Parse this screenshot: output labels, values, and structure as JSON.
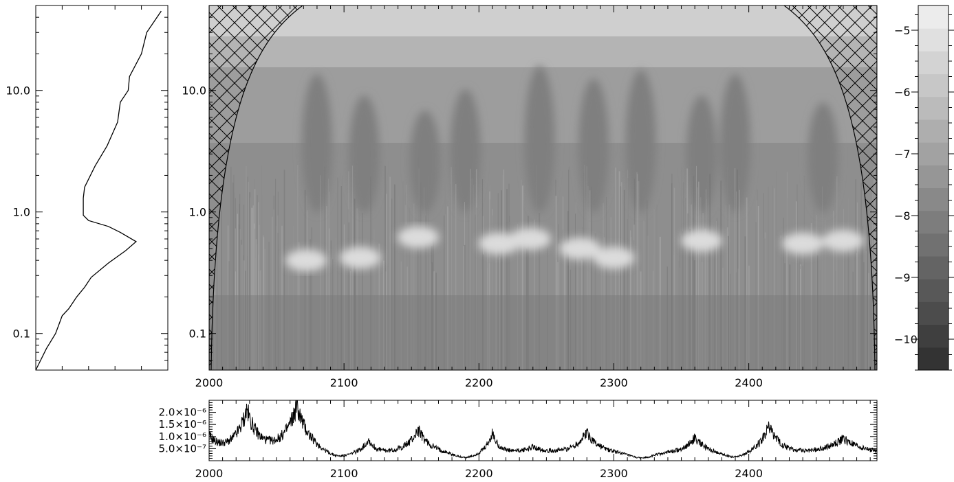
{
  "chart_data": [
    {
      "type": "line",
      "panel": "global-spectrum",
      "yscale": "log",
      "ylim": [
        0.05,
        50
      ],
      "ytick_labels": [
        "10.0",
        "1.0",
        "0.1"
      ],
      "ytick_values": [
        10,
        1,
        0.1
      ],
      "profile": [
        {
          "x": 0.95,
          "y": 45
        },
        {
          "x": 0.84,
          "y": 30
        },
        {
          "x": 0.8,
          "y": 20
        },
        {
          "x": 0.71,
          "y": 13
        },
        {
          "x": 0.7,
          "y": 10
        },
        {
          "x": 0.64,
          "y": 8
        },
        {
          "x": 0.62,
          "y": 5.5
        },
        {
          "x": 0.54,
          "y": 3.5
        },
        {
          "x": 0.45,
          "y": 2.4
        },
        {
          "x": 0.37,
          "y": 1.6
        },
        {
          "x": 0.36,
          "y": 1.3
        },
        {
          "x": 0.36,
          "y": 1.0
        },
        {
          "x": 0.36,
          "y": 0.94
        },
        {
          "x": 0.4,
          "y": 0.85
        },
        {
          "x": 0.55,
          "y": 0.76
        },
        {
          "x": 0.64,
          "y": 0.68
        },
        {
          "x": 0.76,
          "y": 0.57
        },
        {
          "x": 0.68,
          "y": 0.48
        },
        {
          "x": 0.55,
          "y": 0.38
        },
        {
          "x": 0.42,
          "y": 0.29
        },
        {
          "x": 0.37,
          "y": 0.24
        },
        {
          "x": 0.31,
          "y": 0.2
        },
        {
          "x": 0.25,
          "y": 0.16
        },
        {
          "x": 0.2,
          "y": 0.14
        },
        {
          "x": 0.15,
          "y": 0.1
        },
        {
          "x": 0.08,
          "y": 0.075
        },
        {
          "x": 0.0,
          "y": 0.05
        }
      ]
    },
    {
      "type": "heatmap",
      "panel": "wavelet-power",
      "xlim": [
        2000,
        2495
      ],
      "xtick_labels": [
        "2000",
        "2100",
        "2200",
        "2300",
        "2400"
      ],
      "xtick_values": [
        2000,
        2100,
        2200,
        2300,
        2400
      ],
      "yscale": "log",
      "ylim": [
        0.05,
        50
      ],
      "ytick_labels": [
        "10.0",
        "1.0",
        "0.1"
      ],
      "ytick_values": [
        10,
        1,
        0.1
      ],
      "cone_of_influence": "hatched",
      "bright_blobs": [
        {
          "x": 2072,
          "y": 0.4
        },
        {
          "x": 2112,
          "y": 0.42
        },
        {
          "x": 2155,
          "y": 0.62
        },
        {
          "x": 2215,
          "y": 0.55
        },
        {
          "x": 2238,
          "y": 0.6
        },
        {
          "x": 2275,
          "y": 0.5
        },
        {
          "x": 2300,
          "y": 0.42
        },
        {
          "x": 2365,
          "y": 0.58
        },
        {
          "x": 2440,
          "y": 0.55
        },
        {
          "x": 2470,
          "y": 0.58
        }
      ],
      "dark_plumes": [
        {
          "x": 2080,
          "top": 12
        },
        {
          "x": 2115,
          "top": 8
        },
        {
          "x": 2160,
          "top": 6
        },
        {
          "x": 2190,
          "top": 9
        },
        {
          "x": 2245,
          "top": 14
        },
        {
          "x": 2285,
          "top": 11
        },
        {
          "x": 2320,
          "top": 13
        },
        {
          "x": 2365,
          "top": 8
        },
        {
          "x": 2390,
          "top": 12
        },
        {
          "x": 2455,
          "top": 7
        }
      ]
    },
    {
      "type": "colorbar",
      "panel": "colorbar",
      "vlim": [
        -10.5,
        -4.6
      ],
      "tick_labels": [
        "−5",
        "−6",
        "−7",
        "−8",
        "−9",
        "−10"
      ],
      "tick_values": [
        -5,
        -6,
        -7,
        -8,
        -9,
        -10
      ],
      "levels": 16,
      "color_low": "#333333",
      "color_high": "#ececec"
    },
    {
      "type": "line",
      "panel": "time-series",
      "xlim": [
        2000,
        2495
      ],
      "xtick_labels": [
        "2000",
        "2100",
        "2200",
        "2300",
        "2400"
      ],
      "xtick_values": [
        2000,
        2100,
        2200,
        2300,
        2400
      ],
      "ylim": [
        0,
        2.5e-06
      ],
      "ytick_labels": [
        "2.0×10⁻⁶",
        "1.5×10⁻⁶",
        "1.0×10⁻⁶",
        "5.0×10⁻⁷"
      ],
      "ytick_values": [
        2e-06,
        1.5e-06,
        1e-06,
        5e-07
      ],
      "baseline": 3e-07,
      "peaks": [
        {
          "x": 2000,
          "h": 6.5e-07,
          "w": 8
        },
        {
          "x": 2028,
          "h": 1.7e-06,
          "w": 9
        },
        {
          "x": 2065,
          "h": 1.9e-06,
          "w": 10
        },
        {
          "x": 2118,
          "h": 5.5e-07,
          "w": 5
        },
        {
          "x": 2155,
          "h": 9.5e-07,
          "w": 9
        },
        {
          "x": 2210,
          "h": 8e-07,
          "w": 5
        },
        {
          "x": 2240,
          "h": 2.5e-07,
          "w": 10
        },
        {
          "x": 2280,
          "h": 8.5e-07,
          "w": 9
        },
        {
          "x": 2360,
          "h": 6.5e-07,
          "w": 8
        },
        {
          "x": 2415,
          "h": 1.1e-06,
          "w": 8
        },
        {
          "x": 2470,
          "h": 6e-07,
          "w": 14
        }
      ],
      "troughs": [
        2095,
        2190,
        2320,
        2390
      ]
    }
  ]
}
